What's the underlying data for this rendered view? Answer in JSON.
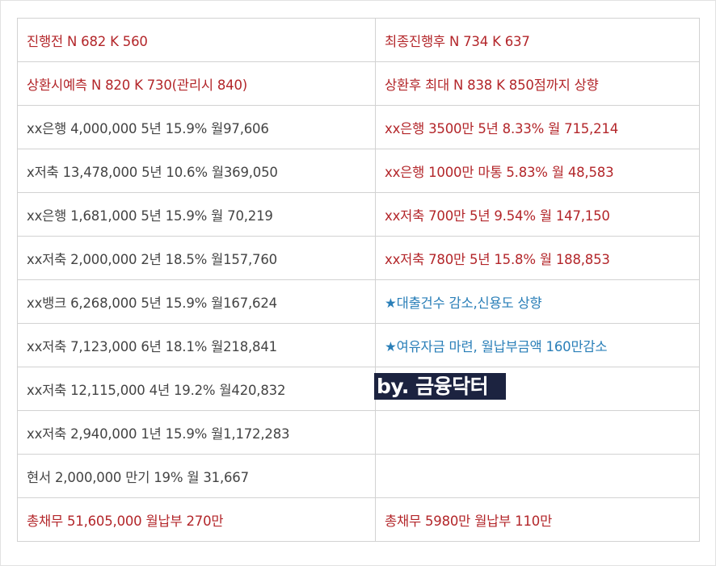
{
  "rows": [
    {
      "left": "진행전 N 682 K 560",
      "right": "최종진행후 N 734 K 637"
    },
    {
      "left": "상환시예측 N 820 K 730(관리시 840)",
      "right": "상환후 최대 N 838 K 850점까지 상향"
    },
    {
      "left": "xx은행  4,000,000 5년 15.9% 월97,606",
      "right": "xx은행 3500만 5년 8.33% 월 715,214"
    },
    {
      "left": "x저축  13,478,000 5년 10.6% 월369,050",
      "right": "xx은행 1000만 마통 5.83% 월 48,583"
    },
    {
      "left": "xx은행 1,681,000 5년 15.9% 월 70,219",
      "right": "xx저축 700만 5년 9.54% 월 147,150"
    },
    {
      "left": "xx저축 2,000,000 2년 18.5% 월157,760",
      "right": "xx저축 780만 5년 15.8% 월 188,853"
    },
    {
      "left": "xx뱅크 6,268,000 5년 15.9% 월167,624",
      "right": "★대출건수 감소,신용도 상향"
    },
    {
      "left": "xx저축 7,123,000 6년 18.1% 월218,841",
      "right": "★여유자금 마련, 월납부금액 160만감소"
    },
    {
      "left": "xx저축 12,115,000 4년 19.2% 월420,832",
      "right": ""
    },
    {
      "left": "xx저축 2,940,000 1년 15.9% 월1,172,283",
      "right": ""
    },
    {
      "left": "현서 2,000,000 만기 19% 월 31,667",
      "right": ""
    },
    {
      "left": "총채무 51,605,000 월납부 270만",
      "right": "총채무 5980만  월납부 110만"
    }
  ],
  "watermark": "by. 금융닥터",
  "colors": {
    "red": "#b3262a",
    "dark": "#444444",
    "blue": "#2a7fb8",
    "stamp_bg": "#1c2340"
  }
}
